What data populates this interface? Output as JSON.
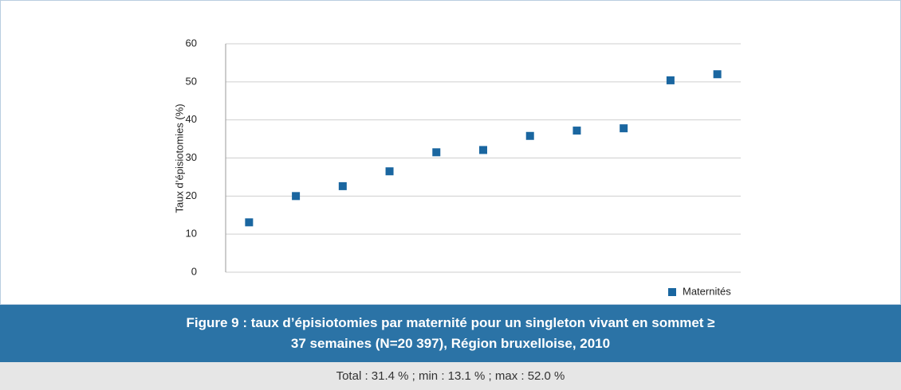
{
  "chart_data": {
    "type": "scatter",
    "title": "Figure 9 : taux d’épisiotomies par maternité pour un singleton vivant en sommet ≥ 37 semaines (N=20 397), Région bruxelloise, 2010",
    "note": "Total : 31.4 % ; min : 13.1 % ; max : 52.0 %",
    "y_label": "Taux d’épisiotomies (%)",
    "categories": [
      null,
      null,
      null,
      null,
      null,
      null,
      null,
      null,
      null,
      null,
      null
    ],
    "series": [
      {
        "name": "Maternités",
        "color": "#1a66a0",
        "values": [
          13.1,
          20.0,
          22.6,
          26.5,
          31.5,
          32.1,
          35.8,
          37.2,
          37.8,
          50.4,
          52.0
        ]
      }
    ],
    "ylim": [
      0,
      60
    ],
    "yticks": [
      0,
      10,
      20,
      30,
      40,
      50,
      60
    ],
    "grid": true,
    "legend": "bottom-right"
  }
}
